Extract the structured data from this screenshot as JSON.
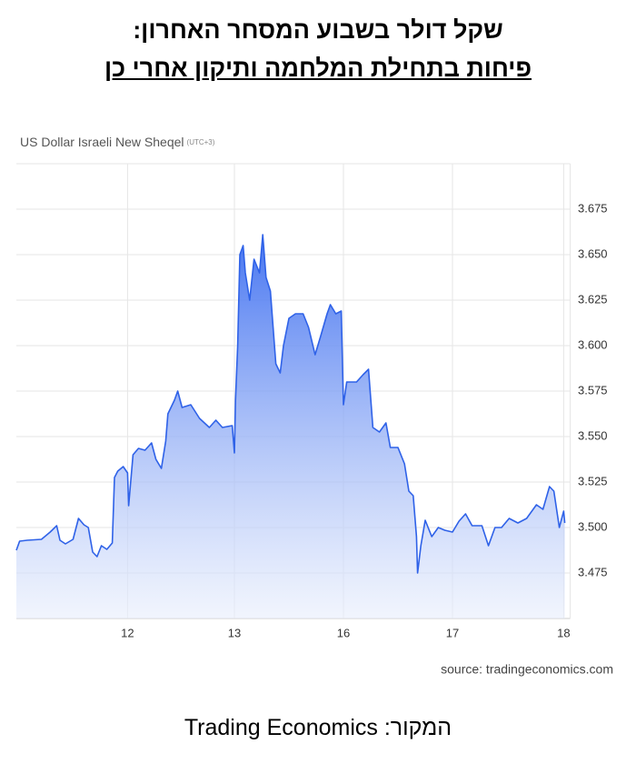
{
  "header": {
    "title": "שקל דולר בשבוע המסחר האחרון:",
    "subtitle": "פיחות בתחילת המלחמה ותיקון אחרי כן"
  },
  "chart_data": {
    "type": "area",
    "title": "US Dollar Israeli New Sheqel",
    "timezone": "(UTC+3)",
    "source": "source: tradingeconomics.com",
    "color": "#2f62e8",
    "grid": true,
    "xlim": [
      0,
      5.08
    ],
    "ylim": [
      3.45,
      3.7
    ],
    "xticks": [
      {
        "value": 1.02,
        "label": "12"
      },
      {
        "value": 2,
        "label": "13"
      },
      {
        "value": 3,
        "label": "16"
      },
      {
        "value": 4,
        "label": "17"
      },
      {
        "value": 5.02,
        "label": "18"
      }
    ],
    "yticks": [
      3.475,
      {
        "value": 3.5,
        "label": "3.500"
      },
      3.525,
      {
        "value": 3.55,
        "label": "3.550"
      },
      3.575,
      {
        "value": 3.6,
        "label": "3.600"
      },
      3.625,
      {
        "value": 3.65,
        "label": "3.650"
      },
      3.675
    ],
    "x": [
      0,
      0.03,
      0.1,
      0.23,
      0.31,
      0.37,
      0.4,
      0.45,
      0.52,
      0.57,
      0.62,
      0.66,
      0.7,
      0.74,
      0.78,
      0.83,
      0.88,
      0.9,
      0.93,
      0.98,
      1.02,
      1.03,
      1.07,
      1.12,
      1.18,
      1.24,
      1.28,
      1.33,
      1.37,
      1.39,
      1.45,
      1.48,
      1.52,
      1.6,
      1.68,
      1.77,
      1.83,
      1.89,
      1.98,
      2.0,
      2.01,
      2.03,
      2.05,
      2.08,
      2.1,
      2.14,
      2.18,
      2.23,
      2.26,
      2.29,
      2.33,
      2.38,
      2.42,
      2.45,
      2.5,
      2.56,
      2.63,
      2.68,
      2.74,
      2.79,
      2.85,
      2.88,
      2.93,
      2.98,
      3.0,
      3.03,
      3.12,
      3.18,
      3.23,
      3.27,
      3.33,
      3.39,
      3.43,
      3.5,
      3.56,
      3.6,
      3.64,
      3.67,
      3.68,
      3.71,
      3.75,
      3.81,
      3.87,
      3.93,
      4.0,
      4.06,
      4.12,
      4.18,
      4.27,
      4.33,
      4.39,
      4.45,
      4.52,
      4.6,
      4.68,
      4.77,
      4.83,
      4.89,
      4.93,
      4.98,
      5.02,
      5.03
    ],
    "values": [
      3.4875,
      3.4925,
      3.493,
      3.4935,
      3.4975,
      3.501,
      3.493,
      3.491,
      3.4935,
      3.505,
      3.5015,
      3.5,
      3.4865,
      3.484,
      3.49,
      3.488,
      3.4915,
      3.5275,
      3.531,
      3.5335,
      3.53,
      3.512,
      3.54,
      3.5435,
      3.5425,
      3.5465,
      3.5375,
      3.5325,
      3.5475,
      3.5625,
      3.57,
      3.575,
      3.566,
      3.5675,
      3.56,
      3.555,
      3.559,
      3.555,
      3.556,
      3.541,
      3.57,
      3.6,
      3.65,
      3.655,
      3.64,
      3.625,
      3.6475,
      3.64,
      3.661,
      3.6375,
      3.63,
      3.59,
      3.585,
      3.6,
      3.615,
      3.6175,
      3.6175,
      3.61,
      3.595,
      3.605,
      3.6175,
      3.6225,
      3.6175,
      3.619,
      3.5675,
      3.58,
      3.58,
      3.584,
      3.587,
      3.555,
      3.5525,
      3.5575,
      3.544,
      3.544,
      3.535,
      3.52,
      3.5175,
      3.495,
      3.475,
      3.49,
      3.504,
      3.495,
      3.5,
      3.4985,
      3.4975,
      3.5035,
      3.5075,
      3.501,
      3.501,
      3.49,
      3.5,
      3.5,
      3.505,
      3.5025,
      3.505,
      3.5125,
      3.51,
      3.5225,
      3.52,
      3.5,
      3.509,
      3.5025
    ]
  },
  "footer": {
    "text": "המקור: Trading Economics"
  }
}
